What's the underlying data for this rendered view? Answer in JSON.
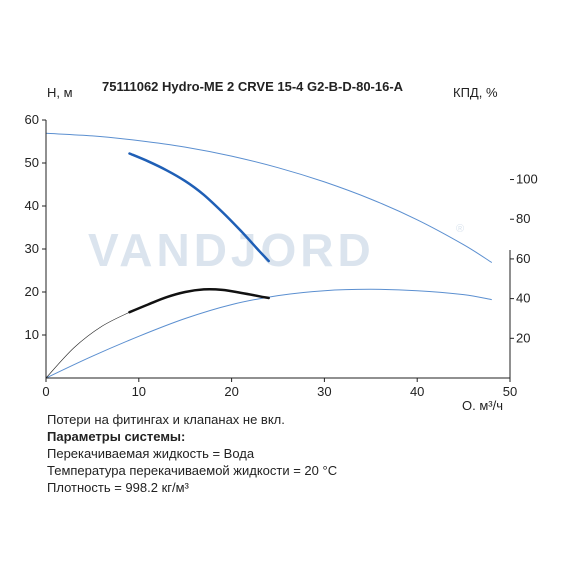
{
  "chart_data": {
    "type": "line",
    "title": "75111062 Hydro-ME 2 CRVE 15-4 G2-B-D-80-16-A",
    "xlabel": "Q, м³/ч",
    "ylabel": "H, м",
    "y2label": "КПД, %",
    "xlim": [
      0,
      50
    ],
    "ylim": [
      0,
      60
    ],
    "y2lim": [
      0,
      130
    ],
    "xticks": [
      "0",
      "10",
      "20",
      "30",
      "40",
      "50"
    ],
    "yticks": [
      "10",
      "20",
      "30",
      "40",
      "50",
      "60"
    ],
    "y2ticks": [
      "20",
      "40",
      "60",
      "80",
      "100"
    ],
    "grid": false,
    "series": [
      {
        "axis": "left",
        "color": "#5b8fd0",
        "width": 1,
        "x": [
          0,
          5,
          10,
          15,
          20,
          25,
          30,
          35,
          40,
          45,
          48
        ],
        "y": [
          56.9,
          56.3,
          55.2,
          53.7,
          51.6,
          48.9,
          45.6,
          41.6,
          36.8,
          31.0,
          26.9
        ]
      },
      {
        "axis": "left",
        "color": "#1f5fb6",
        "width": 2.5,
        "x": [
          9,
          11,
          13,
          15,
          17,
          19,
          21,
          23,
          24
        ],
        "y": [
          52.2,
          50.4,
          48.3,
          45.8,
          42.6,
          38.6,
          34.2,
          29.5,
          27.2
        ]
      },
      {
        "axis": "right",
        "color": "#5b8fd0",
        "width": 1,
        "x": [
          0,
          5,
          10,
          15,
          20,
          25,
          30,
          35,
          40,
          45,
          48
        ],
        "y": [
          0,
          11,
          21,
          30,
          37,
          41.5,
          44,
          44.7,
          44,
          42,
          39.5
        ]
      },
      {
        "axis": "left",
        "color": "#222222",
        "width": 0.6,
        "x": [
          0,
          3,
          6,
          9
        ],
        "y": [
          0,
          7,
          12,
          15.3
        ]
      },
      {
        "axis": "left",
        "color": "#111111",
        "width": 2.5,
        "x": [
          9,
          11,
          13,
          15,
          17,
          19,
          21,
          23,
          24
        ],
        "y": [
          15.3,
          17.1,
          18.8,
          20.0,
          20.6,
          20.5,
          19.8,
          19.0,
          18.6
        ]
      }
    ]
  },
  "watermark": {
    "text": "VANDJORD",
    "mark": "®"
  },
  "notes": {
    "line1": "Потери на фитингах и клапанах не вкл.",
    "heading": "Параметры системы:",
    "line2": "Перекачиваемая жидкость = Вода",
    "line3": "Температура перекачиваемой жидкости = 20 °C",
    "line4": "Плотность = 998.2 кг/м³"
  }
}
